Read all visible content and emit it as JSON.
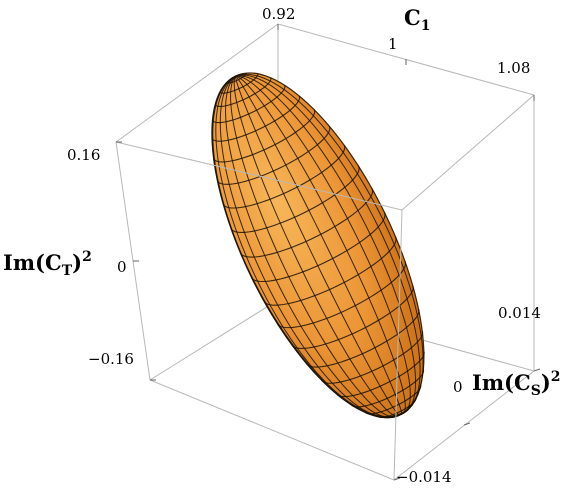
{
  "chart_data": {
    "type": "3d-surface",
    "title": "",
    "surface": "ellipsoid",
    "colors": {
      "surface_fill": "#f0a040",
      "surface_shade": "#c86a10",
      "mesh": "#1a1208",
      "box": "#b8b8b8"
    },
    "axes": {
      "c1": {
        "label": "C",
        "label_sub": "1",
        "range": [
          0.92,
          1.08
        ],
        "ticks": [
          "0.92",
          "1",
          "1.08"
        ]
      },
      "im_ct2": {
        "label_pre": "Im(C",
        "label_sub": "T",
        "label_post": ")",
        "label_sup": "2",
        "range": [
          -0.16,
          0.16
        ],
        "ticks": [
          "0.16",
          "0",
          "−0.16"
        ]
      },
      "im_cs2": {
        "label_pre": "Im(C",
        "label_sub": "S",
        "label_post": ")",
        "label_sup": "2",
        "range": [
          -0.014,
          0.014
        ],
        "ticks": [
          "0.014",
          "0",
          "−0.014"
        ]
      }
    }
  }
}
